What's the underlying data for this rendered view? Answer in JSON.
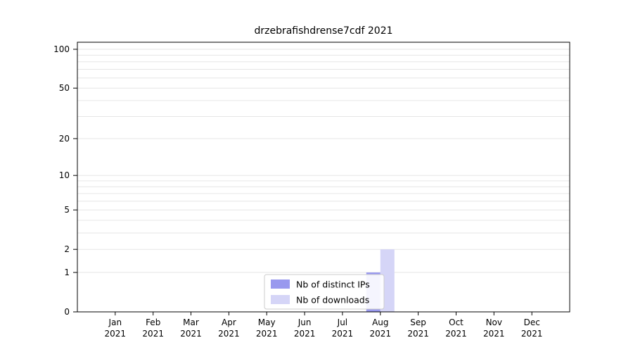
{
  "title": "drzebrafishdrense7cdf 2021",
  "colors": {
    "background": "#ffffff",
    "grid": "#e6e6e6",
    "axis": "#000000",
    "legend_border": "#cccccc",
    "distinct_ips": "#9999ee",
    "downloads": "#d5d5f7"
  },
  "legend": {
    "items": [
      {
        "label": "Nb of distinct IPs",
        "color": "#9999ee"
      },
      {
        "label": "Nb of downloads",
        "color": "#d5d5f7"
      }
    ]
  },
  "chart_data": {
    "type": "bar",
    "title": "drzebrafishdrense7cdf 2021",
    "xlabel": "",
    "ylabel": "",
    "categories": [
      "Jan 2021",
      "Feb 2021",
      "Mar 2021",
      "Apr 2021",
      "May 2021",
      "Jun 2021",
      "Jul 2021",
      "Aug 2021",
      "Sep 2021",
      "Oct 2021",
      "Nov 2021",
      "Dec 2021"
    ],
    "series": [
      {
        "name": "Nb of distinct IPs",
        "color": "#9999ee",
        "values": [
          0,
          0,
          0,
          0,
          0,
          0,
          0,
          1,
          0,
          0,
          0,
          0
        ]
      },
      {
        "name": "Nb of downloads",
        "color": "#d5d5f7",
        "values": [
          0,
          0,
          0,
          0,
          0,
          0,
          0,
          2,
          0,
          0,
          0,
          0
        ]
      }
    ],
    "yscale": "log1p",
    "ylim": [
      0,
      100
    ],
    "yticks": [
      0,
      1,
      2,
      5,
      10,
      20,
      50,
      100
    ],
    "grid_values": [
      1,
      2,
      3,
      4,
      5,
      6,
      7,
      8,
      9,
      10,
      20,
      30,
      40,
      50,
      60,
      70,
      80,
      90,
      100
    ],
    "grid": true,
    "legend_position": "lower-center"
  }
}
